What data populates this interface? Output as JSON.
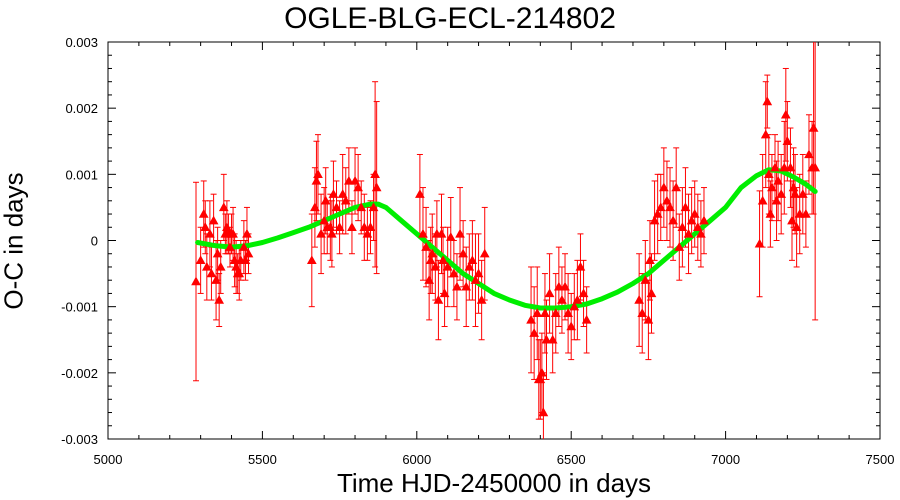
{
  "chart_data": {
    "type": "scatter",
    "title": "OGLE-BLG-ECL-214802",
    "xlabel": "Time HJD-2450000 in days",
    "ylabel": "O-C in days",
    "xlim": [
      5000,
      7500
    ],
    "ylim": [
      -0.003,
      0.003
    ],
    "xticks": [
      5000,
      5500,
      6000,
      6500,
      7000,
      7500
    ],
    "yticks": [
      -0.003,
      -0.002,
      -0.001,
      0,
      0.001,
      0.002,
      0.003
    ],
    "xtick_labels": [
      "5000",
      "5500",
      "6000",
      "6500",
      "7000",
      "7500"
    ],
    "ytick_labels": [
      "-0.003",
      "-0.002",
      "-0.001",
      "0",
      "0.001",
      "0.002",
      "0.003"
    ],
    "grid": false,
    "legend": "none",
    "colors": {
      "points": "#ff0000",
      "fit": "#00ee00"
    },
    "series": [
      {
        "type": "scatter_errorbar",
        "x": [
          5285,
          5300,
          5310,
          5315,
          5320,
          5330,
          5335,
          5342,
          5350,
          5355,
          5360,
          5365,
          5375,
          5380,
          5385,
          5390,
          5395,
          5400,
          5405,
          5410,
          5415,
          5420,
          5425,
          5430,
          5440,
          5445,
          5450,
          5455,
          5660,
          5670,
          5675,
          5680,
          5690,
          5700,
          5705,
          5710,
          5720,
          5725,
          5730,
          5740,
          5750,
          5760,
          5770,
          5780,
          5790,
          5800,
          5810,
          5820,
          5830,
          5840,
          5850,
          5860,
          5865,
          5870,
          6010,
          6020,
          6030,
          6040,
          6045,
          6050,
          6060,
          6065,
          6070,
          6080,
          6085,
          6090,
          6100,
          6110,
          6120,
          6130,
          6140,
          6150,
          6160,
          6170,
          6180,
          6190,
          6200,
          6210,
          6220,
          6370,
          6380,
          6390,
          6395,
          6400,
          6405,
          6410,
          6415,
          6420,
          6430,
          6440,
          6450,
          6460,
          6470,
          6480,
          6490,
          6500,
          6510,
          6520,
          6530,
          6540,
          6550,
          6720,
          6730,
          6740,
          6750,
          6755,
          6760,
          6770,
          6780,
          6790,
          6800,
          6810,
          6820,
          6830,
          6840,
          6850,
          6860,
          6870,
          6880,
          6890,
          6900,
          6910,
          6920,
          6930,
          7110,
          7120,
          7130,
          7135,
          7140,
          7145,
          7150,
          7160,
          7165,
          7170,
          7180,
          7190,
          7195,
          7200,
          7210,
          7215,
          7220,
          7225,
          7230,
          7240,
          7250,
          7260,
          7270,
          7280,
          7285,
          7290
        ],
        "y": [
          -0.00062,
          -0.0003,
          0.0004,
          0.0002,
          -0.0004,
          0.0001,
          -0.0005,
          0.0003,
          -0.0006,
          -0.0002,
          -0.0009,
          -0.0004,
          0.0005,
          0.0001,
          0.0002,
          0.0001,
          -0.0001,
          0.0001,
          0.0001,
          -0.0003,
          -0.0004,
          -0.0005,
          -0.0005,
          -0.0003,
          -0.0001,
          -0.0003,
          0.0001,
          -0.0002,
          -0.0003,
          0.0005,
          0.0009,
          0.001,
          0.0001,
          0.0003,
          0.0006,
          0.0002,
          0.0002,
          0.0001,
          0.0007,
          0.0005,
          0.0002,
          0.0007,
          0.0006,
          0.0009,
          0.0002,
          0.0009,
          0.0008,
          0.0005,
          0.0002,
          0.0001,
          0.0002,
          0.0005,
          0.001,
          0.0008,
          0.0007,
          0.0001,
          -0.0001,
          -0.0006,
          -0.0003,
          -0.0002,
          -0.0004,
          0.0001,
          -0.0009,
          0.0001,
          -0.0003,
          -0.0008,
          -0.0004,
          5e-05,
          -0.0005,
          -0.0007,
          0.0001,
          -0.0002,
          -0.0007,
          -0.0004,
          -0.0003,
          -0.0006,
          -0.0005,
          -0.0009,
          -0.0002,
          -0.0012,
          -0.0014,
          -0.0011,
          -0.0021,
          -0.0021,
          -0.002,
          -0.0026,
          -0.0011,
          -0.0015,
          -0.0008,
          -0.0015,
          -0.0011,
          -0.0007,
          -0.0009,
          -0.0007,
          -0.0011,
          -0.0013,
          -0.001,
          -0.0009,
          -0.0004,
          -0.0008,
          -0.0012,
          -0.0009,
          -0.0011,
          -0.0006,
          -0.0012,
          -0.0003,
          -0.0008,
          0.0003,
          0.0004,
          0.0005,
          0.0008,
          0.0006,
          0.0005,
          0.0003,
          0.0008,
          -0.0001,
          0.0002,
          0.0005,
          0.0001,
          0.0003,
          0.0004,
          0.0002,
          0.0001,
          0.0003,
          -5e-05,
          0.0006,
          0.0016,
          0.0021,
          0.001,
          0.0004,
          0.0008,
          0.0011,
          0.0006,
          0.0009,
          0.0007,
          0.0011,
          0.0019,
          0.0015,
          0.0011,
          0.0003,
          0.0008,
          0.0007,
          0.0002,
          0.0004,
          0.0007,
          0.0004,
          0.0013,
          0.0011,
          0.0017,
          0.0011
        ],
        "err": [
          0.0015,
          0.0005,
          0.0005,
          0.0004,
          0.0005,
          0.0005,
          0.0004,
          0.0004,
          0.0006,
          0.0004,
          0.0004,
          0.0004,
          0.0005,
          0.0003,
          0.0004,
          0.0003,
          0.0003,
          0.0003,
          0.0004,
          0.0004,
          0.0004,
          0.0003,
          0.0004,
          0.0003,
          0.0004,
          0.0003,
          0.0004,
          0.0003,
          0.0007,
          0.0006,
          0.0006,
          0.0006,
          0.0006,
          0.0005,
          0.0005,
          0.0004,
          0.0005,
          0.0005,
          0.0005,
          0.0004,
          0.0004,
          0.0006,
          0.0005,
          0.0005,
          0.0004,
          0.0005,
          0.0005,
          0.0004,
          0.0005,
          0.0004,
          0.0004,
          0.0005,
          0.0014,
          0.0013,
          0.0006,
          0.0007,
          0.0006,
          0.0006,
          0.0005,
          0.0006,
          0.0005,
          0.0005,
          0.0006,
          0.0006,
          0.0005,
          0.0005,
          0.0006,
          0.0006,
          0.0005,
          0.0005,
          0.0007,
          0.0005,
          0.0006,
          0.0005,
          0.0006,
          0.0007,
          0.0006,
          0.0006,
          0.0007,
          0.0008,
          0.0007,
          0.0007,
          0.0006,
          0.0006,
          0.0006,
          0.0006,
          0.0006,
          0.0006,
          0.0006,
          0.0005,
          0.0006,
          0.0006,
          0.0005,
          0.0005,
          0.0006,
          0.0005,
          0.0005,
          0.0006,
          0.0005,
          0.0005,
          0.0005,
          0.0007,
          0.0006,
          0.0006,
          0.0006,
          0.0006,
          0.0006,
          0.0006,
          0.0006,
          0.0005,
          0.0006,
          0.0006,
          0.0006,
          0.0006,
          0.0006,
          0.0005,
          0.0006,
          0.0006,
          0.0006,
          0.0005,
          0.0005,
          0.0005,
          0.0005,
          0.0005,
          0.0008,
          0.0007,
          0.0008,
          0.0004,
          0.0006,
          0.0005,
          0.0005,
          0.0005,
          0.0006,
          0.0006,
          0.0006,
          0.0007,
          0.0007,
          0.0006,
          0.0006,
          0.0006,
          0.0006,
          0.0006,
          0.0006,
          0.0006,
          0.0006,
          0.0005,
          0.0006,
          0.0007,
          0.0013,
          0.0023
        ]
      },
      {
        "type": "line",
        "x": [
          5290,
          5350,
          5400,
          5450,
          5500,
          5550,
          5600,
          5650,
          5700,
          5750,
          5800,
          5850,
          5875,
          5900,
          5950,
          6000,
          6050,
          6100,
          6150,
          6200,
          6250,
          6300,
          6350,
          6400,
          6450,
          6500,
          6550,
          6600,
          6650,
          6700,
          6750,
          6800,
          6850,
          6900,
          6950,
          7000,
          7050,
          7100,
          7140,
          7180,
          7220,
          7260,
          7290
        ],
        "y": [
          -3e-05,
          -8e-05,
          -0.0001,
          -8e-05,
          -3e-05,
          4e-05,
          0.00012,
          0.0002,
          0.0003,
          0.0004,
          0.0005,
          0.00055,
          0.00055,
          0.0005,
          0.0003,
          0.0001,
          -0.0001,
          -0.0003,
          -0.0005,
          -0.00065,
          -0.0008,
          -0.0009,
          -0.00098,
          -0.00102,
          -0.00102,
          -0.001,
          -0.00096,
          -0.00088,
          -0.00078,
          -0.00065,
          -0.0005,
          -0.0003,
          -0.0001,
          0.0001,
          0.0003,
          0.0005,
          0.0008,
          0.00098,
          0.00107,
          0.00105,
          0.00096,
          0.00085,
          0.00074
        ]
      }
    ]
  }
}
